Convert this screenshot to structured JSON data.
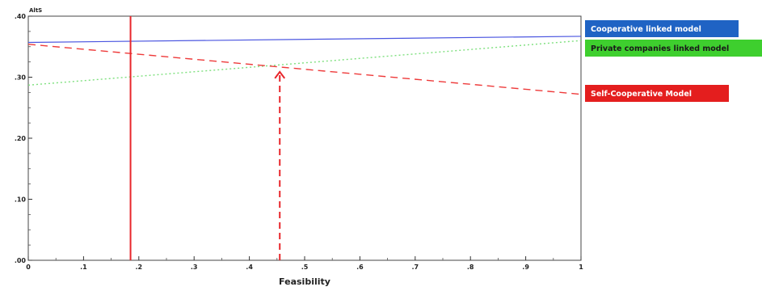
{
  "chart_data": {
    "type": "line",
    "ylabel": "AltS",
    "xlabel": "Feasibility",
    "xlim": [
      0,
      1
    ],
    "ylim": [
      0,
      0.4
    ],
    "x_ticks": [
      0,
      0.1,
      0.2,
      0.3,
      0.4,
      0.5,
      0.6,
      0.7,
      0.8,
      0.9,
      1.0
    ],
    "x_tick_labels": [
      "0",
      ".1",
      ".2",
      ".3",
      ".4",
      ".5",
      ".6",
      ".7",
      ".8",
      ".9",
      "1"
    ],
    "y_ticks": [
      0,
      0.1,
      0.2,
      0.3,
      0.4
    ],
    "y_tick_labels": [
      ".00",
      ".10",
      ".20",
      ".30",
      ".40"
    ],
    "grid": false,
    "series": [
      {
        "name": "Cooperative linked model",
        "x": [
          0,
          1
        ],
        "y": [
          0.357,
          0.367
        ],
        "color": "#4a55e0",
        "dash": "solid",
        "label_bg": "#1f63c4",
        "label_color": "#ffffff"
      },
      {
        "name": "Private companies linked model",
        "x": [
          0,
          1
        ],
        "y": [
          0.287,
          0.36
        ],
        "color": "#7ee07e",
        "dash": "dotted",
        "label_bg": "#3ecf2e",
        "label_color": "#1a1a1a"
      },
      {
        "name": "Self-Cooperative Model",
        "x": [
          0,
          1
        ],
        "y": [
          0.354,
          0.272
        ],
        "color": "#ee3a3a",
        "dash": "dashed",
        "label_bg": "#e41e1e",
        "label_color": "#ffffff"
      }
    ],
    "reference_lines": [
      {
        "x": 0.185,
        "style": "solid",
        "color": "#e8262b"
      },
      {
        "x": 0.455,
        "style": "dashed-arrow",
        "color": "#e8262b"
      }
    ]
  }
}
